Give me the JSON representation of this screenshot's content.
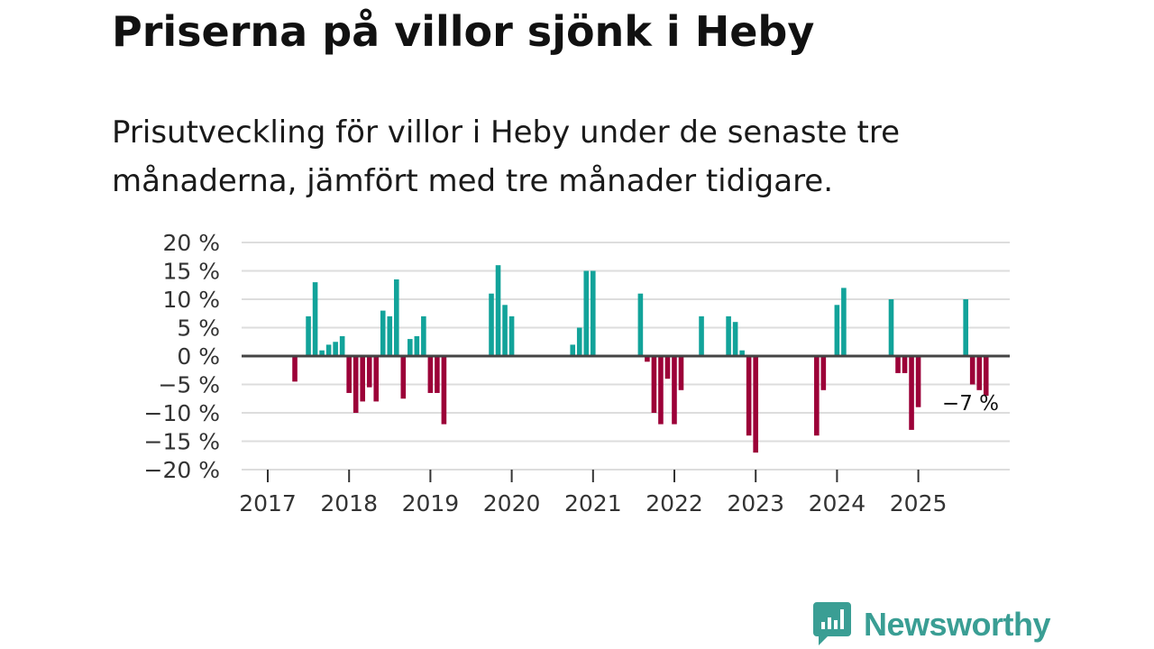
{
  "title": "Priserna på villor sjönk i Heby",
  "subtitle": "Prisutveckling för villor i Heby under de senaste tre månaderna, jämfört med tre månader tidigare.",
  "brand": {
    "name": "Newsworthy",
    "color": "#3a9e94",
    "icon": "newsworthy-logo-icon"
  },
  "colors": {
    "positive": "#12a39a",
    "negative": "#9c0038",
    "grid": "#dddddd",
    "zero": "#444444"
  },
  "chart_data": {
    "type": "bar",
    "unit": "%",
    "ylim": [
      -20,
      20
    ],
    "yticks": [
      20,
      15,
      10,
      5,
      0,
      -5,
      -10,
      -15,
      -20
    ],
    "ytick_labels": [
      "20 %",
      "15 %",
      "10 %",
      "5 %",
      "0 %",
      "−5 %",
      "−10 %",
      "−15 %",
      "−20 %"
    ],
    "xlim": [
      2017,
      2026
    ],
    "xticks": [
      2017,
      2018,
      2019,
      2020,
      2021,
      2022,
      2023,
      2024,
      2025
    ],
    "xtick_labels": [
      "2017",
      "2018",
      "2019",
      "2020",
      "2021",
      "2022",
      "2023",
      "2024",
      "2025"
    ],
    "end_label": "−7 %",
    "months": [
      "2017-03",
      "2017-05",
      "2017-06",
      "2017-07",
      "2017-08",
      "2017-09",
      "2017-10",
      "2017-11",
      "2017-12",
      "2018-01",
      "2018-02",
      "2018-03",
      "2018-04",
      "2018-05",
      "2018-06",
      "2018-07",
      "2018-08",
      "2018-09",
      "2018-10",
      "2018-11",
      "2018-12",
      "2019-01",
      "2019-08",
      "2019-09",
      "2019-10",
      "2019-11",
      "2020-08",
      "2020-09",
      "2020-10",
      "2020-11",
      "2021-06",
      "2021-07",
      "2021-08",
      "2021-09",
      "2021-10",
      "2021-11",
      "2021-12",
      "2022-03",
      "2022-07",
      "2022-08",
      "2022-09",
      "2022-10",
      "2022-11",
      "2023-08",
      "2023-09",
      "2023-11",
      "2023-12",
      "2024-07",
      "2024-08",
      "2024-09",
      "2024-10",
      "2024-11",
      "2025-06",
      "2025-07",
      "2025-08",
      "2025-09"
    ],
    "values": [
      -4.5,
      7,
      13,
      1,
      2,
      2.5,
      3.5,
      -6.5,
      -10,
      -8,
      -5.5,
      -8,
      8,
      7,
      13.5,
      -7.5,
      3,
      3.5,
      7,
      -6.5,
      -6.5,
      -12,
      11,
      16,
      9,
      7,
      2,
      5,
      15,
      15,
      11,
      -1,
      -10,
      -12,
      -4,
      -12,
      -6,
      7,
      7,
      6,
      1,
      -14,
      -17,
      -14,
      -6,
      9,
      12,
      10,
      -3,
      -3,
      -13,
      -9,
      10,
      -5,
      -6,
      -7
    ]
  }
}
